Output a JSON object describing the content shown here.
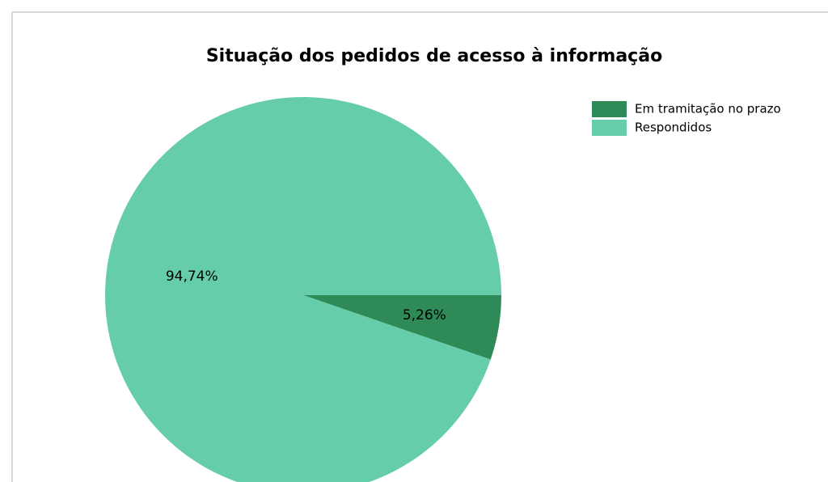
{
  "chart_data": {
    "type": "pie",
    "title": "Situação dos pedidos de acesso à informação",
    "categories": [
      "Em tramitação no prazo",
      "Respondidos"
    ],
    "values": [
      5.26,
      94.74
    ],
    "value_labels": [
      "5,26%",
      "94,74%"
    ],
    "colors": [
      "#2e8b57",
      "#66cdaa"
    ],
    "legend": "top-right"
  }
}
